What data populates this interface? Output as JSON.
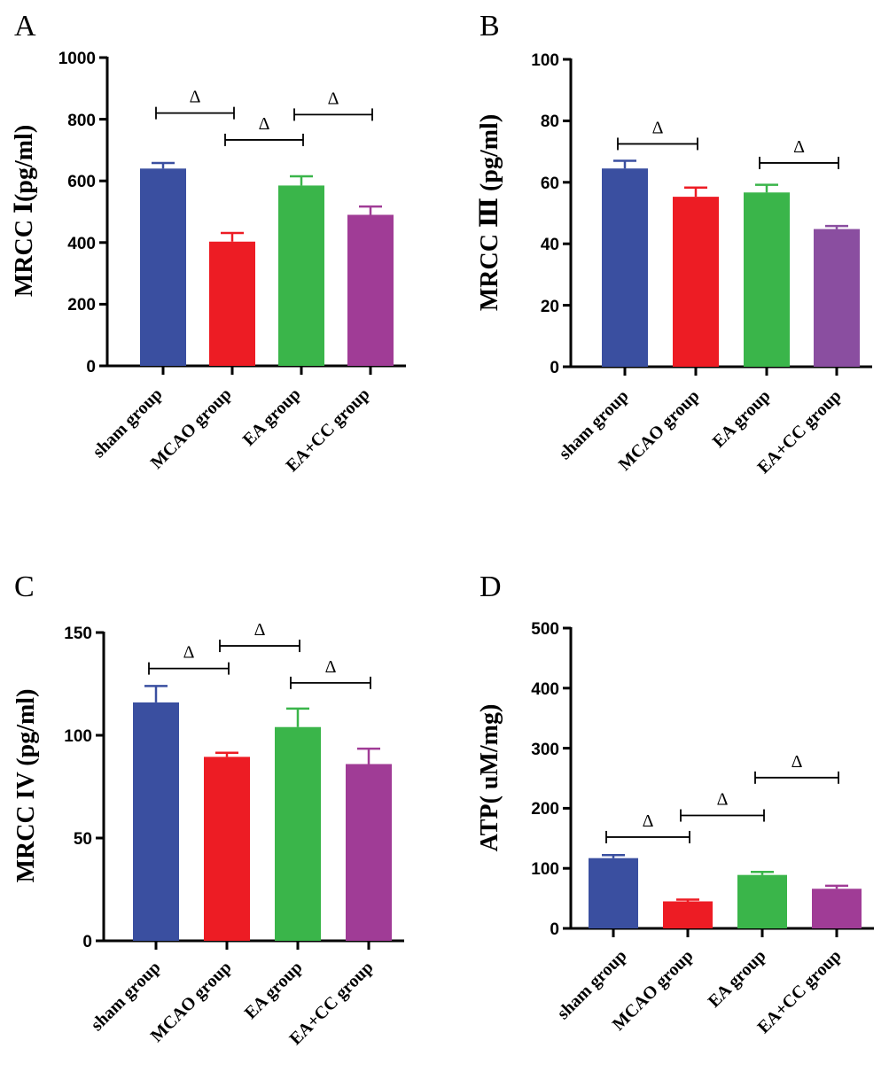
{
  "panels": [
    {
      "letter": "A",
      "ylabel": "MRCC Ⅰ(pg/ml)",
      "categories": [
        "sham group",
        "MCAO group",
        "EA group",
        "EA+CC group"
      ],
      "ticks": [
        "0",
        "200",
        "400",
        "600",
        "800",
        "1000"
      ]
    },
    {
      "letter": "B",
      "ylabel": "MRCC Ⅲ (pg/ml)",
      "categories": [
        "sham group",
        "MCAO group",
        "EA group",
        "EA+CC group"
      ],
      "ticks": [
        "0",
        "20",
        "40",
        "60",
        "80",
        "100"
      ]
    },
    {
      "letter": "C",
      "ylabel": "MRCC IV (pg/ml)",
      "categories": [
        "sham group",
        "MCAO group",
        "EA group",
        "EA+CC group"
      ],
      "ticks": [
        "0",
        "50",
        "100",
        "150"
      ]
    },
    {
      "letter": "D",
      "ylabel": "ATP( uM/mg)",
      "categories": [
        "sham group",
        "MCAO group",
        "EA group",
        "EA+CC group"
      ],
      "ticks": [
        "0",
        "100",
        "200",
        "300",
        "400",
        "500"
      ]
    }
  ],
  "colors": {
    "sham": "#3a4fa0",
    "mcao": "#ed1c24",
    "ea": "#3ab54a",
    "eacc": "#a03c96",
    "eacc_b": "#8a4ea0"
  },
  "chart_data": [
    {
      "type": "bar",
      "title": "",
      "xlabel": "",
      "ylabel": "MRCC Ⅰ(pg/ml)",
      "categories": [
        "sham group",
        "MCAO group",
        "EA group",
        "EA+CC group"
      ],
      "values": [
        640,
        403,
        585,
        490
      ],
      "errors": [
        18,
        28,
        30,
        27
      ],
      "ylim": [
        0,
        1000
      ],
      "yticks": [
        0,
        200,
        400,
        600,
        800,
        1000
      ],
      "significance": [
        {
          "from": 0,
          "to": 1,
          "y": 820,
          "label": "Δ"
        },
        {
          "from": 1,
          "to": 2,
          "y": 733,
          "label": "Δ"
        },
        {
          "from": 2,
          "to": 3,
          "y": 815,
          "label": "Δ"
        }
      ]
    },
    {
      "type": "bar",
      "title": "",
      "xlabel": "",
      "ylabel": "MRCC Ⅲ (pg/ml)",
      "categories": [
        "sham group",
        "MCAO group",
        "EA group",
        "EA+CC group"
      ],
      "values": [
        64.5,
        55.3,
        56.7,
        44.8
      ],
      "errors": [
        2.5,
        3.0,
        2.5,
        1.0
      ],
      "ylim": [
        0,
        100
      ],
      "yticks": [
        0,
        20,
        40,
        60,
        80,
        100
      ],
      "significance": [
        {
          "from": 0,
          "to": 1,
          "y": 72.5,
          "label": "Δ"
        },
        {
          "from": 2,
          "to": 3,
          "y": 66.3,
          "label": "Δ"
        }
      ]
    },
    {
      "type": "bar",
      "title": "",
      "xlabel": "",
      "ylabel": "MRCC IV (pg/ml)",
      "categories": [
        "sham group",
        "MCAO group",
        "EA group",
        "EA+CC group"
      ],
      "values": [
        116,
        89.5,
        104,
        86
      ],
      "errors": [
        8,
        2,
        9,
        7.5
      ],
      "ylim": [
        0,
        150
      ],
      "yticks": [
        0,
        50,
        100,
        150
      ],
      "significance": [
        {
          "from": 0,
          "to": 1,
          "y": 132.5,
          "label": "Δ"
        },
        {
          "from": 1,
          "to": 2,
          "y": 143.5,
          "label": "Δ"
        },
        {
          "from": 2,
          "to": 3,
          "y": 125.5,
          "label": "Δ"
        }
      ]
    },
    {
      "type": "bar",
      "title": "",
      "xlabel": "",
      "ylabel": "ATP( uM/mg)",
      "categories": [
        "sham group",
        "MCAO group",
        "EA group",
        "EA+CC group"
      ],
      "values": [
        117,
        45,
        89,
        66
      ],
      "errors": [
        5,
        3,
        5,
        5
      ],
      "ylim": [
        0,
        500
      ],
      "yticks": [
        0,
        100,
        200,
        300,
        400,
        500
      ],
      "significance": [
        {
          "from": 0,
          "to": 1,
          "y": 152,
          "label": "Δ"
        },
        {
          "from": 1,
          "to": 2,
          "y": 188,
          "label": "Δ"
        },
        {
          "from": 2,
          "to": 3,
          "y": 251,
          "label": "Δ"
        }
      ]
    }
  ]
}
